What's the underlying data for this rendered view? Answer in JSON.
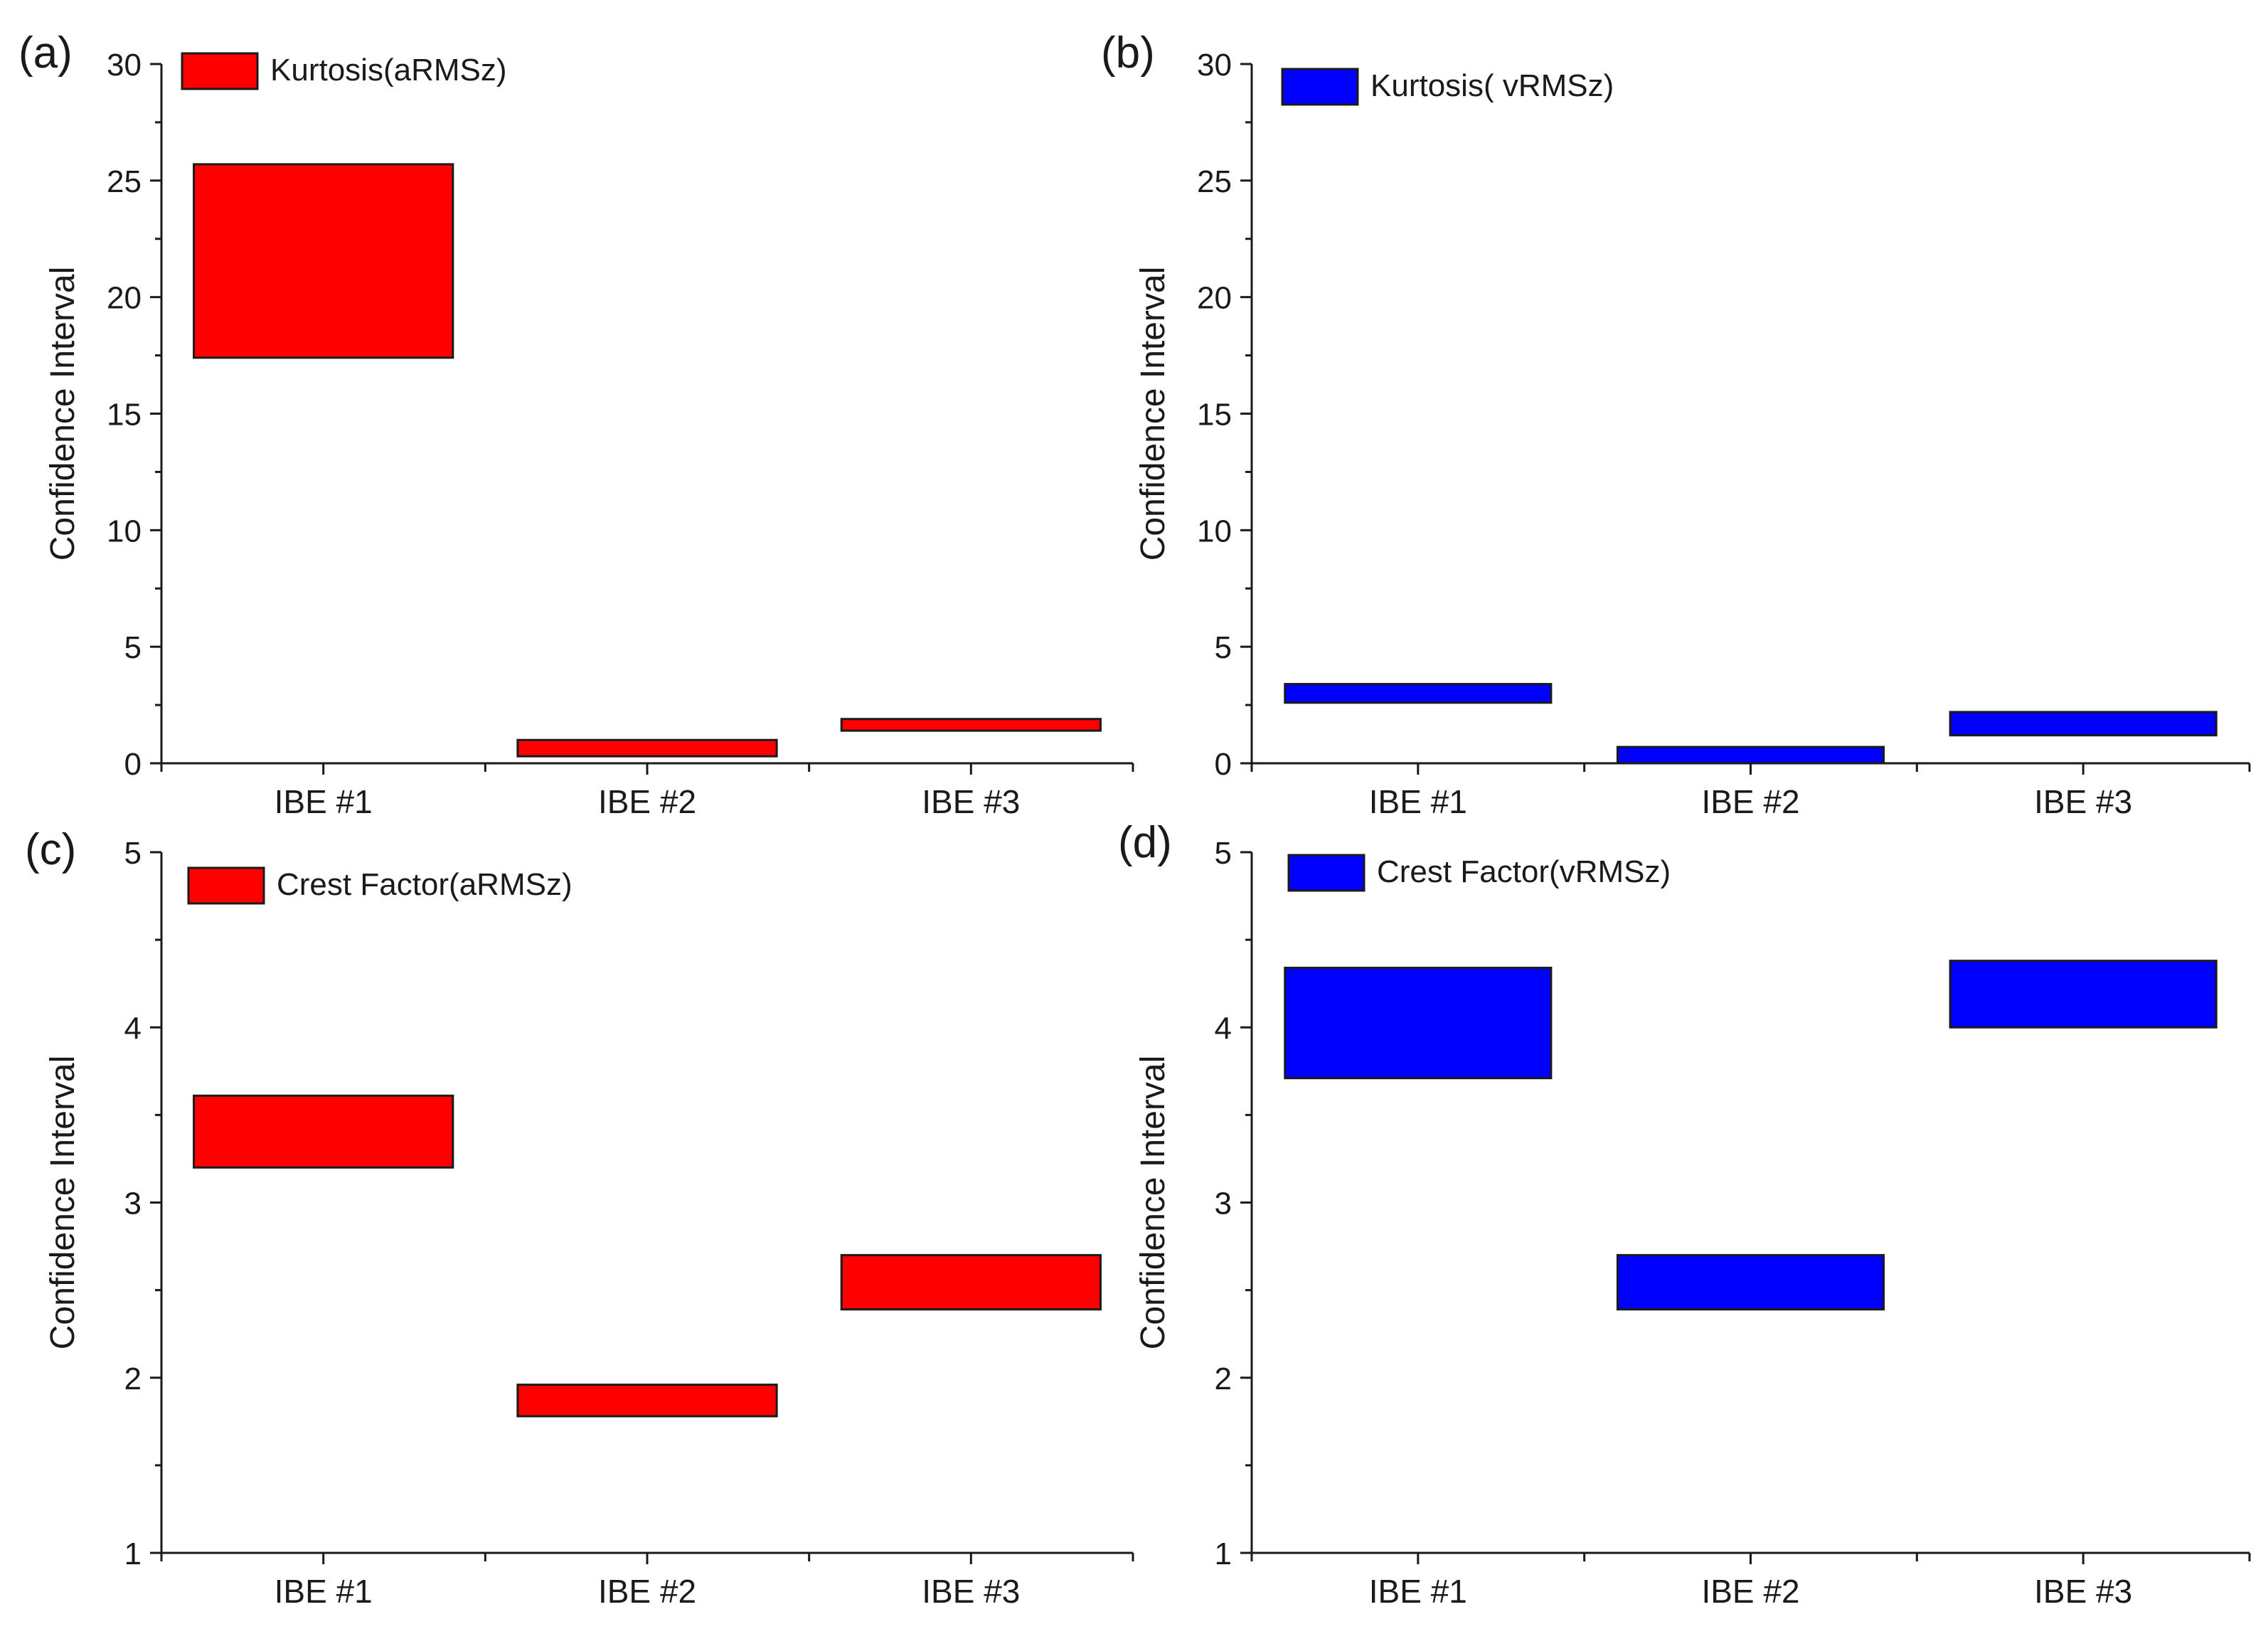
{
  "figure": {
    "panels": [
      "a",
      "b",
      "c",
      "d"
    ]
  },
  "chart_data": [
    {
      "panel_label": "(a)",
      "type": "floating-bar",
      "color": "#ff0000",
      "legend": "Kurtosis(aRMSz)",
      "ylabel": "Confidence Interval",
      "ylim": [
        0,
        30
      ],
      "yticks": [
        "0",
        "5",
        "10",
        "15",
        "20",
        "25",
        "30"
      ],
      "categories": [
        "IBE #1",
        "IBE #2",
        "IBE #3"
      ],
      "low": [
        17.4,
        0.3,
        1.4
      ],
      "high": [
        25.7,
        1.0,
        1.9
      ]
    },
    {
      "panel_label": "(b)",
      "type": "floating-bar",
      "color": "#0000ff",
      "legend": "Kurtosis( vRMSz)",
      "ylabel": "Confidence Interval",
      "ylim": [
        0,
        30
      ],
      "yticks": [
        "0",
        "5",
        "10",
        "15",
        "20",
        "25",
        "30"
      ],
      "categories": [
        "IBE #1",
        "IBE #2",
        "IBE #3"
      ],
      "low": [
        2.6,
        0.0,
        1.2
      ],
      "high": [
        3.4,
        0.7,
        2.2
      ]
    },
    {
      "panel_label": "(c)",
      "type": "floating-bar",
      "color": "#ff0000",
      "legend": "Crest Factor(aRMSz)",
      "ylabel": "Confidence Interval",
      "ylim": [
        1,
        5
      ],
      "yticks": [
        "1",
        "2",
        "3",
        "4",
        "5"
      ],
      "categories": [
        "IBE #1",
        "IBE #2",
        "IBE #3"
      ],
      "low": [
        3.2,
        1.78,
        2.39
      ],
      "high": [
        3.61,
        1.96,
        2.7
      ]
    },
    {
      "panel_label": "(d)",
      "type": "floating-bar",
      "color": "#0000ff",
      "legend": "Crest Factor(vRMSz)",
      "ylabel": "Confidence Interval",
      "ylim": [
        1,
        5
      ],
      "yticks": [
        "1",
        "2",
        "3",
        "4",
        "5"
      ],
      "categories": [
        "IBE #1",
        "IBE #2",
        "IBE #3"
      ],
      "low": [
        3.71,
        2.39,
        4.0
      ],
      "high": [
        4.34,
        2.7,
        4.38
      ]
    }
  ]
}
